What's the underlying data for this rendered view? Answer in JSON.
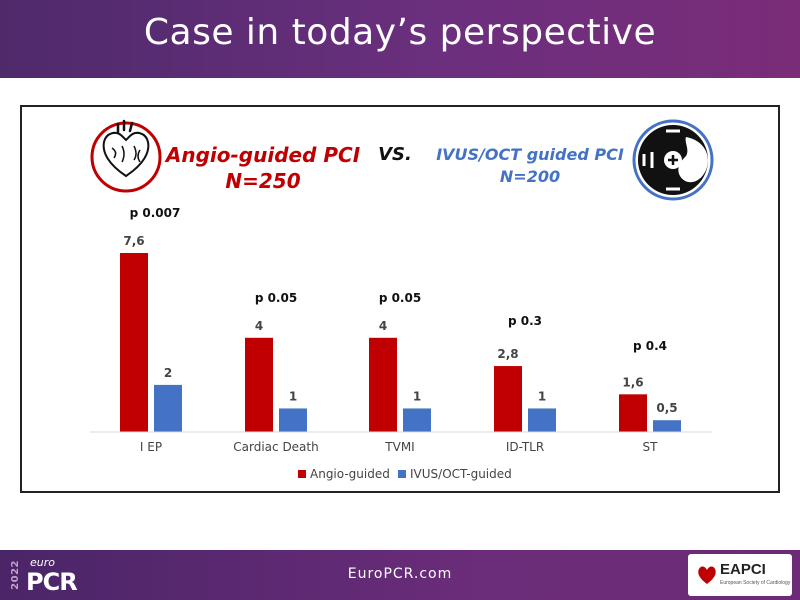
{
  "header": {
    "title": "Case in today’s perspective"
  },
  "footer": {
    "url": "EuroPCR.com",
    "year": "2022",
    "euro": "euro",
    "pcr": "PCR",
    "eapci": "EAPCI",
    "eapci_sub": "European Society of Cardiology"
  },
  "comparison": {
    "left_title": "Angio-guided PCI",
    "left_n": "N=250",
    "vs": "VS.",
    "right_title": "IVUS/OCT guided PCI",
    "right_n": "N=200",
    "left_icon": "heart-icon",
    "right_icon": "ivus-catheter-icon"
  },
  "colors": {
    "angio": "#c00000",
    "ivus": "#4472c4",
    "left_text": "#c00000",
    "right_text": "#4472c4"
  },
  "chart_data": {
    "type": "bar",
    "categories": [
      "I EP",
      "Cardiac Death",
      "TVMI",
      "ID-TLR",
      "ST"
    ],
    "series": [
      {
        "name": "Angio-guided",
        "values": [
          7.6,
          4,
          4,
          2.8,
          1.6
        ],
        "labels": [
          "7,6",
          "4",
          "4",
          "2,8",
          "1,6"
        ]
      },
      {
        "name": "IVUS/OCT-guided",
        "values": [
          2,
          1,
          1,
          1,
          0.5
        ],
        "labels": [
          "2",
          "1",
          "1",
          "1",
          "0,5"
        ]
      }
    ],
    "annotations": [
      "p 0.007",
      "p 0.05",
      "p 0.05",
      "p 0.3",
      "p 0.4"
    ],
    "legend": "bottom-center",
    "grid": false
  }
}
